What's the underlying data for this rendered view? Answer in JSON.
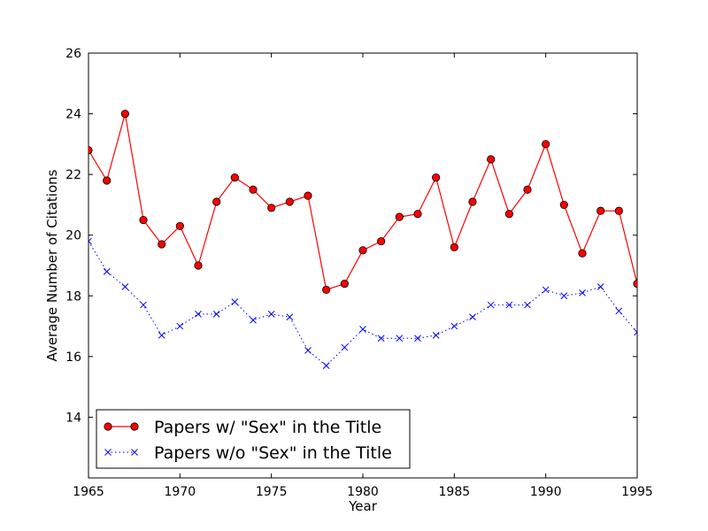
{
  "chart_data": {
    "type": "line",
    "title": "",
    "xlabel": "Year",
    "ylabel": "Average Number of Citations",
    "xlim": [
      1965,
      1995
    ],
    "ylim": [
      12,
      26
    ],
    "xticks": [
      1965,
      1970,
      1975,
      1980,
      1985,
      1990,
      1995
    ],
    "yticks": [
      14,
      16,
      18,
      20,
      22,
      24,
      26
    ],
    "x": [
      1965,
      1966,
      1967,
      1968,
      1969,
      1970,
      1971,
      1972,
      1973,
      1974,
      1975,
      1976,
      1977,
      1978,
      1979,
      1980,
      1981,
      1982,
      1983,
      1984,
      1985,
      1986,
      1987,
      1988,
      1989,
      1990,
      1991,
      1992,
      1993,
      1994,
      1995
    ],
    "series": [
      {
        "name": "Papers w/ \"Sex\" in the Title",
        "color": "#ff0000",
        "marker": "circle",
        "linestyle": "solid",
        "values": [
          22.8,
          21.8,
          24.0,
          20.5,
          19.7,
          20.3,
          19.0,
          21.1,
          21.9,
          21.5,
          20.9,
          21.1,
          21.3,
          18.2,
          18.4,
          19.5,
          19.8,
          20.6,
          20.7,
          21.9,
          19.6,
          21.1,
          22.5,
          20.7,
          21.5,
          23.0,
          21.0,
          19.4,
          20.8,
          20.8,
          18.4
        ]
      },
      {
        "name": "Papers w/o \"Sex\" in the Title",
        "color": "#0000ff",
        "marker": "x",
        "linestyle": "dotted",
        "values": [
          19.8,
          18.8,
          18.3,
          17.7,
          16.7,
          17.0,
          17.4,
          17.4,
          17.8,
          17.2,
          17.4,
          17.3,
          16.2,
          15.7,
          16.3,
          16.9,
          16.6,
          16.6,
          16.6,
          16.7,
          17.0,
          17.3,
          17.7,
          17.7,
          17.7,
          18.2,
          18.0,
          18.1,
          18.3,
          17.5,
          16.8
        ]
      }
    ],
    "grid": false,
    "legend_position": "lower-left"
  }
}
